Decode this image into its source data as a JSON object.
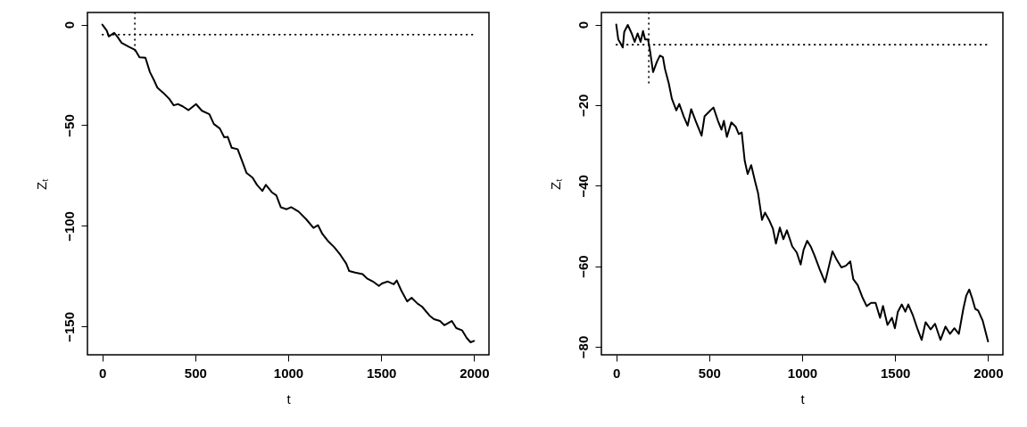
{
  "chart_data": [
    {
      "type": "line",
      "xlabel": "t",
      "ylabel": "Zₜ",
      "xlim": [
        -80,
        2080
      ],
      "ylim": [
        -164,
        6
      ],
      "xticks": [
        0,
        500,
        1000,
        1500,
        2000
      ],
      "yticks": [
        0,
        -50,
        -100,
        -150
      ],
      "series": [
        {
          "color": "#000000",
          "line_style": "solid",
          "x": [
            0,
            24,
            35,
            64,
            80,
            104,
            144,
            176,
            200,
            232,
            256,
            280,
            296,
            328,
            360,
            384,
            408,
            432,
            464,
            504,
            536,
            576,
            600,
            632,
            656,
            675,
            696,
            728,
            752,
            776,
            808,
            832,
            861,
            880,
            912,
            936,
            960,
            992,
            1016,
            1056,
            1096,
            1136,
            1160,
            1184,
            1216,
            1248,
            1280,
            1312,
            1328,
            1360,
            1400,
            1424,
            1456,
            1488,
            1504,
            1536,
            1568,
            1584,
            1608,
            1640,
            1664,
            1696,
            1720,
            1760,
            1784,
            1816,
            1840,
            1880,
            1904,
            1936,
            1960,
            1981,
            2000
          ],
          "values": [
            0,
            -3,
            -5.9,
            -4.1,
            -5.9,
            -9.1,
            -11.1,
            -12.5,
            -16.2,
            -16.5,
            -23.6,
            -28,
            -31.3,
            -33.9,
            -36.9,
            -40.1,
            -39.5,
            -40.6,
            -42.5,
            -39.5,
            -42.8,
            -44.5,
            -49.4,
            -51.6,
            -56,
            -55.8,
            -61.2,
            -61.9,
            -67.8,
            -73.7,
            -76,
            -79.6,
            -82.6,
            -79.6,
            -83.3,
            -84.8,
            -90.7,
            -91.7,
            -90.7,
            -92.9,
            -96.6,
            -101,
            -99.6,
            -104,
            -107.7,
            -110.6,
            -114.3,
            -118.7,
            -122.4,
            -123.2,
            -123.9,
            -126.1,
            -127.6,
            -129.8,
            -128.6,
            -127.6,
            -129,
            -127.1,
            -132,
            -137.5,
            -135.7,
            -138.6,
            -140.1,
            -144.5,
            -146.3,
            -147.2,
            -149.3,
            -147.2,
            -150.7,
            -151.9,
            -155.6,
            -157.8,
            -157.1
          ]
        },
        {
          "color": "#000000",
          "line_style": "dotted",
          "x": [
            0,
            2000
          ],
          "values": [
            -5,
            -5
          ]
        },
        {
          "color": "#000000",
          "line_style": "dotted",
          "x": [
            175,
            175
          ],
          "values": [
            6,
            -15
          ]
        }
      ]
    },
    {
      "type": "line",
      "xlabel": "t",
      "ylabel": "Zₜ",
      "xlim": [
        -80,
        2080
      ],
      "ylim": [
        -82,
        3
      ],
      "xticks": [
        0,
        500,
        1000,
        1500,
        2000
      ],
      "yticks": [
        0,
        -20,
        -40,
        -60,
        -80
      ],
      "series": [
        {
          "color": "#000000",
          "line_style": "solid",
          "x": [
            0,
            11,
            22,
            35,
            43,
            62,
            83,
            99,
            115,
            131,
            144,
            155,
            171,
            182,
            198,
            219,
            235,
            251,
            262,
            283,
            299,
            323,
            339,
            363,
            384,
            403,
            427,
            459,
            475,
            507,
            523,
            547,
            566,
            579,
            595,
            619,
            643,
            659,
            675,
            691,
            707,
            726,
            747,
            763,
            784,
            800,
            822,
            843,
            859,
            880,
            899,
            918,
            947,
            971,
            992,
            1008,
            1027,
            1046,
            1067,
            1094,
            1123,
            1139,
            1163,
            1187,
            1211,
            1235,
            1259,
            1275,
            1299,
            1323,
            1347,
            1371,
            1395,
            1419,
            1435,
            1459,
            1483,
            1499,
            1515,
            1536,
            1555,
            1571,
            1595,
            1619,
            1643,
            1664,
            1691,
            1715,
            1744,
            1771,
            1795,
            1819,
            1843,
            1867,
            1883,
            1899,
            1915,
            1931,
            1947,
            1971,
            2000
          ],
          "values": [
            0,
            -3.7,
            -4.6,
            -5.7,
            -1.8,
            -0.1,
            -2.2,
            -4.3,
            -2.2,
            -4.3,
            -1.6,
            -3.7,
            -3.7,
            -6.6,
            -11.8,
            -9.2,
            -7.7,
            -8.1,
            -11,
            -14.7,
            -18.4,
            -21.3,
            -19.7,
            -22.8,
            -25.1,
            -21,
            -23.9,
            -27.6,
            -22.8,
            -21.3,
            -20.6,
            -23.9,
            -26.1,
            -23.9,
            -27.9,
            -24.3,
            -25.4,
            -27.2,
            -26.8,
            -33.8,
            -37.1,
            -34.9,
            -39,
            -41.9,
            -48.5,
            -46.7,
            -48.5,
            -50.7,
            -54.4,
            -50.4,
            -53.3,
            -51.1,
            -55.1,
            -56.6,
            -59.6,
            -55.9,
            -53.7,
            -55.1,
            -57.4,
            -60.7,
            -64,
            -61,
            -56.3,
            -58.5,
            -60.3,
            -59.9,
            -58.8,
            -63.2,
            -64.7,
            -67.6,
            -69.9,
            -69.1,
            -69.1,
            -72.8,
            -69.9,
            -74.6,
            -72.8,
            -75.4,
            -71.3,
            -69.5,
            -71.3,
            -69.5,
            -72.1,
            -75.4,
            -78.3,
            -73.9,
            -75.7,
            -74.3,
            -78.3,
            -75,
            -76.8,
            -75.4,
            -76.8,
            -70.6,
            -67.3,
            -65.8,
            -68,
            -70.6,
            -71,
            -73.5,
            -78.7
          ]
        },
        {
          "color": "#000000",
          "line_style": "dotted",
          "x": [
            0,
            2000
          ],
          "values": [
            -5,
            -5
          ]
        },
        {
          "color": "#000000",
          "line_style": "dotted",
          "x": [
            175,
            175
          ],
          "values": [
            3,
            -15
          ]
        }
      ]
    }
  ]
}
